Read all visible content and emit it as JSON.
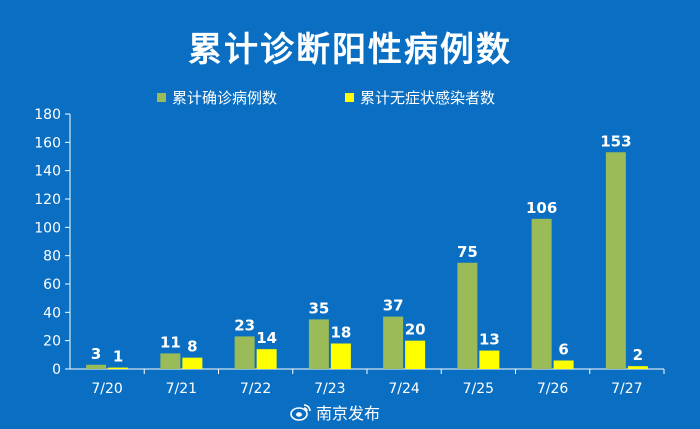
{
  "chart_data": {
    "type": "bar",
    "title": "累计诊断阳性病例数",
    "categories": [
      "7/20",
      "7/21",
      "7/22",
      "7/23",
      "7/24",
      "7/25",
      "7/26",
      "7/27"
    ],
    "series": [
      {
        "name": "累计确诊病例数",
        "values": [
          3,
          11,
          23,
          35,
          37,
          75,
          106,
          153
        ],
        "color": "#9bbb59"
      },
      {
        "name": "累计无症状感染者数",
        "values": [
          1,
          8,
          14,
          18,
          20,
          13,
          6,
          2
        ],
        "color": "#ffff00"
      }
    ],
    "ylim": [
      0,
      180
    ],
    "yticks": [
      0,
      20,
      40,
      60,
      80,
      100,
      120,
      140,
      160,
      180
    ],
    "xlabel": "",
    "ylabel": "",
    "grid": false,
    "legend_position": "top"
  },
  "watermark": {
    "text": "南京发布"
  },
  "colors": {
    "background": "#0a6fc2",
    "text": "#ffffff",
    "axis": "#ffffff"
  }
}
